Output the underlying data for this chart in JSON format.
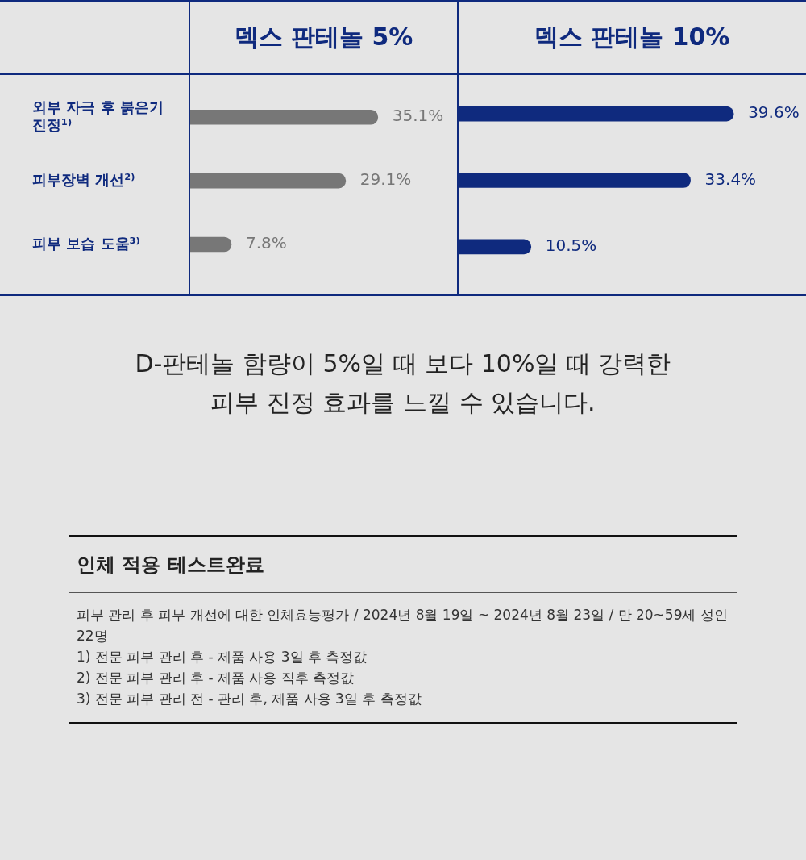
{
  "chart_data": [
    {
      "type": "bar",
      "orientation": "horizontal",
      "title": "덱스 판테놀 5%",
      "categories": [
        "외부 자극 후 붉은기 진정¹⁾",
        "피부장벽 개선²⁾",
        "피부 보습 도움³⁾"
      ],
      "series": [
        {
          "color": "#777777",
          "values": [
            35.1,
            29.1,
            7.8
          ],
          "value_labels": [
            "35.1%",
            "29.1%",
            "7.8%"
          ]
        }
      ]
    },
    {
      "type": "bar",
      "orientation": "horizontal",
      "title": "덱스 판테놀 10%",
      "tick_labels": false,
      "series": [
        {
          "color": "#0f2a7e",
          "values": [
            39.6,
            33.4,
            10.5
          ],
          "value_labels": [
            "39.6%",
            "33.4%",
            "10.5%"
          ]
        }
      ]
    },
    {
      "type": "other",
      "annotations": [
        "D-판테놀 함량이 5%일 때 보다 10%일 때 강력한 피부 진정 효과를 느낄 수 있습니다.",
        "인체 적용 테스트완료",
        "피부 관리 후 피부 개선에 대한 인체효능평가 / 2024년 8월 19일 ~ 2024년 8월 23일 / 만 20~59세 성인 22명",
        "1) 전문 피부 관리 후 - 제품 사용 3일 후 측정값",
        "2) 전문 피부 관리 후 - 제품 사용 직후 측정값",
        "3) 전문 피부 관리 전 -  관리 후, 제품 사용 3일 후 측정값"
      ]
    }
  ]
}
